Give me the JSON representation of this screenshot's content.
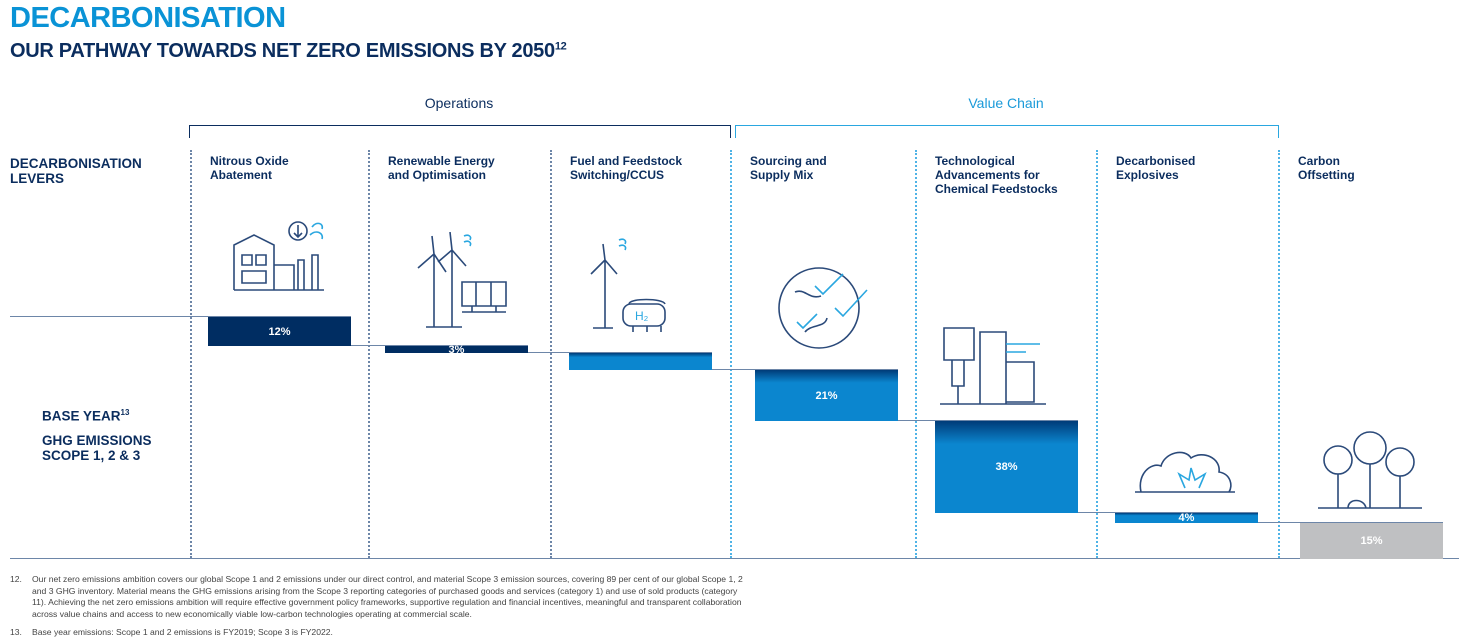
{
  "header": {
    "title": "DECARBONISATION",
    "subtitle": "OUR PATHWAY TOWARDS NET ZERO EMISSIONS BY 2050",
    "subtitle_sup": "12"
  },
  "groups": [
    {
      "label": "Operations",
      "color": "#0b2d5e"
    },
    {
      "label": "Value Chain",
      "color": "#1a9ad9"
    }
  ],
  "side_labels": {
    "levers": [
      "DECARBONISATION",
      "LEVERS"
    ],
    "base_year": "BASE YEAR",
    "base_year_sup": "13",
    "ghg": [
      "GHG EMISSIONS",
      "SCOPE 1, 2 & 3"
    ]
  },
  "colors": {
    "operations_bar": "#002d62",
    "value_chain_bar": "#0b86cf",
    "offset_bar": "#bfc0c2",
    "title": "#0a93d6",
    "navy": "#0b2d5e"
  },
  "chart_data": {
    "type": "waterfall",
    "categories": [
      {
        "lines": [
          "Nitrous Oxide",
          "Abatement"
        ],
        "group": "Operations",
        "icon": "factory-icon"
      },
      {
        "lines": [
          "Renewable Energy",
          "and Optimisation"
        ],
        "group": "Operations",
        "icon": "wind-solar-icon"
      },
      {
        "lines": [
          "Fuel and Feedstock",
          "Switching/CCUS"
        ],
        "group": "Operations",
        "icon": "hydrogen-tank-icon"
      },
      {
        "lines": [
          "Sourcing and",
          "Supply Mix"
        ],
        "group": "Value Chain",
        "icon": "globe-check-icon"
      },
      {
        "lines": [
          "Technological",
          "Advancements for",
          "Chemical Feedstocks"
        ],
        "group": "Value Chain",
        "icon": "chemical-plant-icon"
      },
      {
        "lines": [
          "Decarbonised",
          "Explosives"
        ],
        "group": "Value Chain",
        "icon": "explosion-icon"
      },
      {
        "lines": [
          "Carbon",
          "Offsetting"
        ],
        "group": "Offset",
        "icon": "trees-icon"
      }
    ],
    "values": [
      12,
      3,
      7,
      21,
      38,
      4,
      15
    ],
    "labels": [
      "12%",
      "3%",
      "",
      "21%",
      "38%",
      "4%",
      "15%"
    ],
    "unit": "% of base year GHG emissions"
  },
  "footnotes": [
    {
      "num": "12.",
      "text": "Our net zero emissions ambition covers our global Scope 1 and 2 emissions under our direct control, and material Scope 3 emission sources, covering 89 per cent of our global Scope 1, 2 and 3 GHG inventory. Material means the GHG emissions arising from the Scope 3 reporting categories of purchased goods and services (category 1) and use of sold products (category 11). Achieving the net zero emissions ambition will require effective government policy frameworks, supportive regulation and financial incentives, meaningful and transparent collaboration across value chains and access to new economically viable low-carbon technologies operating at commercial scale."
    },
    {
      "num": "13.",
      "text": "Base year emissions: Scope 1 and 2 emissions is FY2019; Scope 3 is FY2022."
    }
  ]
}
